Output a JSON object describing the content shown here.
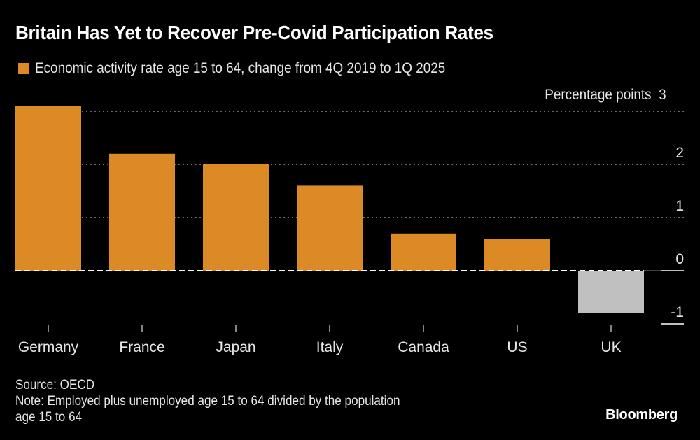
{
  "chart_data": {
    "type": "bar",
    "title": "Britain Has Yet to Recover Pre-Covid Participation Rates",
    "legend": [
      {
        "label": "Economic activity rate age 15 to 64, change from 4Q 2019 to 1Q 2025",
        "color": "#DB8A26"
      }
    ],
    "legend_position": "top-left",
    "categories": [
      "Germany",
      "France",
      "Japan",
      "Italy",
      "Canada",
      "US",
      "UK"
    ],
    "values": [
      3.1,
      2.2,
      2.0,
      1.6,
      0.7,
      0.6,
      -0.8
    ],
    "bar_colors": [
      "#DB8A26",
      "#DB8A26",
      "#DB8A26",
      "#DB8A26",
      "#DB8A26",
      "#DB8A26",
      "#C0C0C0"
    ],
    "xlabel": "",
    "ylabel": "Percentage points",
    "ylim": [
      -1,
      3
    ],
    "yticks": [
      3,
      2,
      1,
      0,
      -1
    ],
    "ytick_labels": [
      "3",
      "2",
      "1",
      "0",
      "-1"
    ],
    "y_axis_side": "right",
    "grid": true
  },
  "footer": {
    "source": "Source: OECD",
    "note_line1": "Note: Employed plus unemployed age 15 to 64 divided by the population",
    "note_line2": "age 15 to 64",
    "brand": "Bloomberg"
  }
}
